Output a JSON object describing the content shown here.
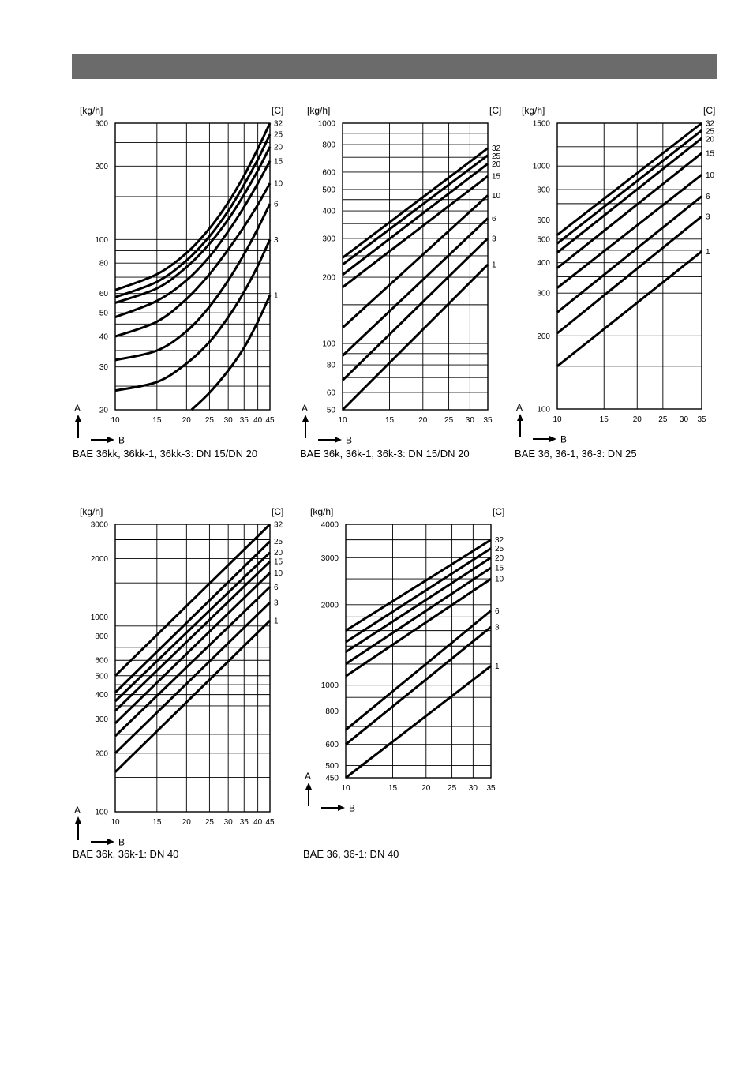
{
  "page": {
    "header_color": "#6b6b6b"
  },
  "chart_data": [
    {
      "type": "line",
      "id": "c1",
      "caption": "BAE 36kk, 36kk-1, 36kk-3: DN 15/DN 20",
      "y_unit": "[kg/h]",
      "curve_unit": "[C]",
      "y_axis_letter": "A",
      "x_axis_letter": "B",
      "xscale": "log",
      "yscale": "log",
      "xlim": [
        10,
        45
      ],
      "ylim": [
        20,
        300
      ],
      "x_ticks": [
        10,
        15,
        20,
        25,
        30,
        35,
        40,
        45
      ],
      "y_ticks": [
        20,
        30,
        40,
        50,
        60,
        80,
        100,
        200,
        300
      ],
      "x_grid": [
        10,
        15,
        20,
        25,
        30,
        35,
        40,
        45
      ],
      "y_grid": [
        20,
        25,
        30,
        35,
        40,
        45,
        50,
        55,
        60,
        70,
        80,
        90,
        100,
        150,
        200,
        250,
        300
      ],
      "series": [
        {
          "name": "32",
          "x": [
            10,
            15,
            20,
            25,
            30,
            35,
            40,
            45
          ],
          "y": [
            62,
            72,
            88,
            111,
            142,
            183,
            236,
            300
          ]
        },
        {
          "name": "25",
          "x": [
            10,
            15,
            20,
            25,
            30,
            35,
            40,
            45
          ],
          "y": [
            58,
            67,
            82,
            103,
            131,
            168,
            213,
            270
          ]
        },
        {
          "name": "20",
          "x": [
            10,
            15,
            20,
            25,
            30,
            35,
            40,
            45
          ],
          "y": [
            55,
            63,
            77,
            96,
            121,
            153,
            192,
            240
          ]
        },
        {
          "name": "15",
          "x": [
            10,
            15,
            20,
            25,
            30,
            35,
            40,
            45
          ],
          "y": [
            48,
            56,
            68,
            85,
            108,
            136,
            170,
            210
          ]
        },
        {
          "name": "10",
          "x": [
            10,
            15,
            20,
            25,
            30,
            35,
            40,
            45
          ],
          "y": [
            40,
            46,
            57,
            72,
            91,
            113,
            139,
            170
          ]
        },
        {
          "name": "6",
          "x": [
            10,
            15,
            20,
            25,
            30,
            35,
            40,
            45
          ],
          "y": [
            32,
            35,
            42,
            53,
            68,
            87,
            111,
            140
          ]
        },
        {
          "name": "3",
          "x": [
            10,
            15,
            20,
            25,
            30,
            35,
            40,
            45
          ],
          "y": [
            24,
            26,
            31,
            38,
            48,
            61,
            78,
            100
          ]
        },
        {
          "name": "1",
          "x": [
            21,
            25,
            30,
            35,
            40,
            45
          ],
          "y": [
            20,
            23.5,
            29,
            36,
            46,
            59
          ]
        }
      ]
    },
    {
      "type": "line",
      "id": "c2",
      "caption": "BAE 36k, 36k-1, 36k-3: DN 15/DN 20",
      "y_unit": "[kg/h]",
      "curve_unit": "[C]",
      "y_axis_letter": "A",
      "x_axis_letter": "B",
      "xscale": "log",
      "yscale": "log",
      "xlim": [
        10,
        35
      ],
      "ylim": [
        50,
        1000
      ],
      "x_ticks": [
        10,
        15,
        20,
        25,
        30,
        35
      ],
      "y_ticks": [
        50,
        60,
        80,
        100,
        200,
        300,
        400,
        500,
        600,
        800,
        1000
      ],
      "x_grid": [
        10,
        15,
        20,
        25,
        30,
        35
      ],
      "y_grid": [
        50,
        60,
        70,
        80,
        90,
        100,
        150,
        200,
        250,
        300,
        350,
        400,
        450,
        500,
        600,
        700,
        800,
        900,
        1000
      ],
      "series": [
        {
          "name": "32",
          "x": [
            10,
            35
          ],
          "y": [
            245,
            770
          ]
        },
        {
          "name": "25",
          "x": [
            10,
            35
          ],
          "y": [
            228,
            715
          ]
        },
        {
          "name": "20",
          "x": [
            10,
            35
          ],
          "y": [
            205,
            655
          ]
        },
        {
          "name": "15",
          "x": [
            10,
            35
          ],
          "y": [
            180,
            575
          ]
        },
        {
          "name": "10",
          "x": [
            10,
            35
          ],
          "y": [
            118,
            470
          ]
        },
        {
          "name": "6",
          "x": [
            10,
            35
          ],
          "y": [
            88,
            370
          ]
        },
        {
          "name": "3",
          "x": [
            10,
            35
          ],
          "y": [
            68,
            300
          ]
        },
        {
          "name": "1",
          "x": [
            10,
            35
          ],
          "y": [
            50,
            228
          ]
        }
      ]
    },
    {
      "type": "line",
      "id": "c3",
      "caption": "BAE 36, 36-1, 36-3: DN 25",
      "y_unit": "[kg/h]",
      "curve_unit": "[C]",
      "y_axis_letter": "A",
      "x_axis_letter": "B",
      "xscale": "log",
      "yscale": "log",
      "xlim": [
        10,
        35
      ],
      "ylim": [
        100,
        1500
      ],
      "x_ticks": [
        10,
        15,
        20,
        25,
        30,
        35
      ],
      "y_ticks": [
        100,
        200,
        300,
        400,
        500,
        600,
        800,
        1000,
        1500
      ],
      "x_grid": [
        10,
        15,
        20,
        25,
        30,
        35
      ],
      "y_grid": [
        100,
        150,
        200,
        300,
        350,
        400,
        450,
        500,
        600,
        700,
        800,
        1000,
        1200,
        1500
      ],
      "series": [
        {
          "name": "32",
          "x": [
            10,
            35
          ],
          "y": [
            520,
            1500
          ]
        },
        {
          "name": "25",
          "x": [
            10,
            35
          ],
          "y": [
            480,
            1400
          ]
        },
        {
          "name": "20",
          "x": [
            10,
            35
          ],
          "y": [
            440,
            1300
          ]
        },
        {
          "name": "15",
          "x": [
            10,
            35
          ],
          "y": [
            380,
            1130
          ]
        },
        {
          "name": "10",
          "x": [
            10,
            35
          ],
          "y": [
            315,
            920
          ]
        },
        {
          "name": "6",
          "x": [
            10,
            35
          ],
          "y": [
            250,
            750
          ]
        },
        {
          "name": "3",
          "x": [
            10,
            35
          ],
          "y": [
            205,
            620
          ]
        },
        {
          "name": "1",
          "x": [
            10,
            35
          ],
          "y": [
            150,
            445
          ]
        }
      ]
    },
    {
      "type": "line",
      "id": "c4",
      "caption": "BAE 36k, 36k-1: DN 40",
      "y_unit": "[kg/h]",
      "curve_unit": "[C]",
      "y_axis_letter": "A",
      "x_axis_letter": "B",
      "xscale": "log",
      "yscale": "log",
      "xlim": [
        10,
        45
      ],
      "ylim": [
        100,
        3000
      ],
      "x_ticks": [
        10,
        15,
        20,
        25,
        30,
        35,
        40,
        45
      ],
      "y_ticks": [
        100,
        200,
        300,
        400,
        500,
        600,
        800,
        1000,
        2000,
        3000
      ],
      "x_grid": [
        10,
        15,
        20,
        25,
        30,
        35,
        40,
        45
      ],
      "y_grid": [
        100,
        150,
        200,
        250,
        300,
        350,
        400,
        450,
        500,
        600,
        700,
        800,
        900,
        1000,
        1500,
        2000,
        2500,
        3000
      ],
      "series": [
        {
          "name": "32",
          "x": [
            10,
            45
          ],
          "y": [
            500,
            3000
          ]
        },
        {
          "name": "25",
          "x": [
            10,
            45
          ],
          "y": [
            410,
            2450
          ]
        },
        {
          "name": "20",
          "x": [
            10,
            45
          ],
          "y": [
            370,
            2150
          ]
        },
        {
          "name": "15",
          "x": [
            10,
            45
          ],
          "y": [
            330,
            1930
          ]
        },
        {
          "name": "10",
          "x": [
            10,
            45
          ],
          "y": [
            285,
            1690
          ]
        },
        {
          "name": "6",
          "x": [
            10,
            45
          ],
          "y": [
            245,
            1430
          ]
        },
        {
          "name": "3",
          "x": [
            10,
            45
          ],
          "y": [
            200,
            1190
          ]
        },
        {
          "name": "1",
          "x": [
            10,
            45
          ],
          "y": [
            160,
            960
          ]
        }
      ]
    },
    {
      "type": "line",
      "id": "c5",
      "caption": "BAE 36, 36-1: DN 40",
      "y_unit": "[kg/h]",
      "curve_unit": "[C]",
      "y_axis_letter": "A",
      "x_axis_letter": "B",
      "xscale": "log",
      "yscale": "log",
      "xlim": [
        10,
        35
      ],
      "ylim": [
        450,
        4000
      ],
      "x_ticks": [
        10,
        15,
        20,
        25,
        30,
        35
      ],
      "y_ticks": [
        450,
        500,
        600,
        800,
        1000,
        2000,
        3000,
        4000
      ],
      "x_grid": [
        10,
        15,
        20,
        25,
        30,
        35
      ],
      "y_grid": [
        450,
        500,
        600,
        700,
        800,
        900,
        1000,
        1200,
        1400,
        1600,
        1800,
        2000,
        2500,
        3000,
        3500,
        4000
      ],
      "series": [
        {
          "name": "32",
          "x": [
            10,
            35
          ],
          "y": [
            1600,
            3500
          ]
        },
        {
          "name": "25",
          "x": [
            10,
            35
          ],
          "y": [
            1450,
            3250
          ]
        },
        {
          "name": "20",
          "x": [
            10,
            35
          ],
          "y": [
            1330,
            3000
          ]
        },
        {
          "name": "15",
          "x": [
            10,
            35
          ],
          "y": [
            1200,
            2750
          ]
        },
        {
          "name": "10",
          "x": [
            10,
            35
          ],
          "y": [
            1080,
            2500
          ]
        },
        {
          "name": "6",
          "x": [
            10,
            35
          ],
          "y": [
            680,
            1900
          ]
        },
        {
          "name": "3",
          "x": [
            10,
            35
          ],
          "y": [
            600,
            1650
          ]
        },
        {
          "name": "1",
          "x": [
            10,
            35
          ],
          "y": [
            450,
            1180
          ]
        }
      ]
    }
  ]
}
